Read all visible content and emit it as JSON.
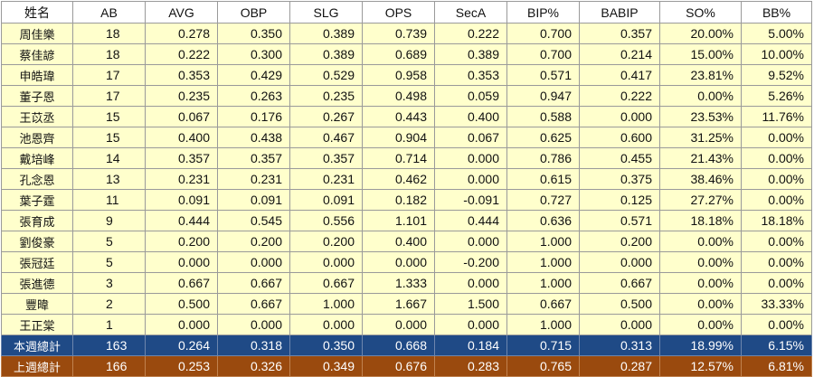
{
  "headers": [
    "姓名",
    "AB",
    "AVG",
    "OBP",
    "SLG",
    "OPS",
    "SecA",
    "BIP%",
    "BABIP",
    "SO%",
    "BB%"
  ],
  "rows": [
    [
      "周佳樂",
      "18",
      "0.278",
      "0.350",
      "0.389",
      "0.739",
      "0.222",
      "0.700",
      "0.357",
      "20.00%",
      "5.00%"
    ],
    [
      "蔡佳諺",
      "18",
      "0.222",
      "0.300",
      "0.389",
      "0.689",
      "0.389",
      "0.700",
      "0.214",
      "15.00%",
      "10.00%"
    ],
    [
      "申皓瑋",
      "17",
      "0.353",
      "0.429",
      "0.529",
      "0.958",
      "0.353",
      "0.571",
      "0.417",
      "23.81%",
      "9.52%"
    ],
    [
      "董子恩",
      "17",
      "0.235",
      "0.263",
      "0.235",
      "0.498",
      "0.059",
      "0.947",
      "0.222",
      "0.00%",
      "5.26%"
    ],
    [
      "王苡丞",
      "15",
      "0.067",
      "0.176",
      "0.267",
      "0.443",
      "0.400",
      "0.588",
      "0.000",
      "23.53%",
      "11.76%"
    ],
    [
      "池恩齊",
      "15",
      "0.400",
      "0.438",
      "0.467",
      "0.904",
      "0.067",
      "0.625",
      "0.600",
      "31.25%",
      "0.00%"
    ],
    [
      "戴培峰",
      "14",
      "0.357",
      "0.357",
      "0.357",
      "0.714",
      "0.000",
      "0.786",
      "0.455",
      "21.43%",
      "0.00%"
    ],
    [
      "孔念恩",
      "13",
      "0.231",
      "0.231",
      "0.231",
      "0.462",
      "0.000",
      "0.615",
      "0.375",
      "38.46%",
      "0.00%"
    ],
    [
      "葉子霆",
      "11",
      "0.091",
      "0.091",
      "0.091",
      "0.182",
      "-0.091",
      "0.727",
      "0.125",
      "27.27%",
      "0.00%"
    ],
    [
      "張育成",
      "9",
      "0.444",
      "0.545",
      "0.556",
      "1.101",
      "0.444",
      "0.636",
      "0.571",
      "18.18%",
      "18.18%"
    ],
    [
      "劉俊豪",
      "5",
      "0.200",
      "0.200",
      "0.200",
      "0.400",
      "0.000",
      "1.000",
      "0.200",
      "0.00%",
      "0.00%"
    ],
    [
      "張冠廷",
      "5",
      "0.000",
      "0.000",
      "0.000",
      "0.000",
      "-0.200",
      "1.000",
      "0.000",
      "0.00%",
      "0.00%"
    ],
    [
      "張進德",
      "3",
      "0.667",
      "0.667",
      "0.667",
      "1.333",
      "0.000",
      "1.000",
      "0.667",
      "0.00%",
      "0.00%"
    ],
    [
      "豐暐",
      "2",
      "0.500",
      "0.667",
      "1.000",
      "1.667",
      "1.500",
      "0.667",
      "0.500",
      "0.00%",
      "33.33%"
    ],
    [
      "王正棠",
      "1",
      "0.000",
      "0.000",
      "0.000",
      "0.000",
      "0.000",
      "1.000",
      "0.000",
      "0.00%",
      "0.00%"
    ]
  ],
  "totals": [
    {
      "key": "this_week",
      "row": [
        "本週總計",
        "163",
        "0.264",
        "0.318",
        "0.350",
        "0.668",
        "0.184",
        "0.715",
        "0.313",
        "18.99%",
        "6.15%"
      ]
    },
    {
      "key": "last_week",
      "row": [
        "上週總計",
        "166",
        "0.253",
        "0.326",
        "0.349",
        "0.676",
        "0.283",
        "0.765",
        "0.287",
        "12.57%",
        "6.81%"
      ]
    }
  ],
  "colors": {
    "row_bg": "#ffffcc",
    "header_bg": "#ffffff",
    "this_week_bg": "#1f4a86",
    "last_week_bg": "#9a4a0e",
    "total_text": "#ffffff",
    "border": "#9a9a9a"
  }
}
